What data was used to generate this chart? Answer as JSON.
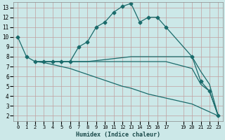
{
  "xlabel": "Humidex (Indice chaleur)",
  "bg_color": "#cce8e8",
  "grid_color": "#c0a0a0",
  "line_color": "#1a6b6b",
  "xlim": [
    -0.5,
    23.5
  ],
  "ylim": [
    1.5,
    13.5
  ],
  "xticks": [
    0,
    1,
    2,
    3,
    4,
    5,
    6,
    7,
    8,
    9,
    10,
    11,
    12,
    13,
    14,
    15,
    16,
    17,
    19,
    20,
    21,
    22,
    23
  ],
  "yticks": [
    2,
    3,
    4,
    5,
    6,
    7,
    8,
    9,
    10,
    11,
    12,
    13
  ],
  "series": [
    {
      "x": [
        0,
        1,
        2,
        3,
        4,
        5,
        6,
        7,
        8,
        9,
        10,
        11,
        12,
        13,
        14,
        15,
        16,
        17,
        20,
        21,
        22,
        23
      ],
      "y": [
        10,
        8,
        7.5,
        7.5,
        7.5,
        7.5,
        7.5,
        9,
        9.5,
        11,
        11.5,
        12.5,
        13.1,
        13.4,
        11.5,
        12,
        12,
        11,
        8,
        5.5,
        4.5,
        2
      ],
      "marker": "D",
      "markersize": 2.5,
      "lw": 0.9
    },
    {
      "x": [
        2,
        3,
        4,
        5,
        6,
        7,
        8,
        9,
        10,
        11,
        12,
        13,
        14,
        15,
        16,
        17,
        20,
        21,
        22,
        23
      ],
      "y": [
        7.5,
        7.5,
        7.5,
        7.5,
        7.5,
        7.5,
        7.5,
        7.6,
        7.7,
        7.8,
        7.9,
        8.0,
        8.0,
        8.0,
        8.0,
        8.0,
        8.0,
        6.5,
        5.2,
        2
      ],
      "marker": null,
      "markersize": 0,
      "lw": 0.9
    },
    {
      "x": [
        2,
        3,
        4,
        5,
        6,
        7,
        8,
        9,
        10,
        11,
        12,
        13,
        14,
        15,
        16,
        17,
        20,
        21,
        22,
        23
      ],
      "y": [
        7.5,
        7.5,
        7.5,
        7.5,
        7.5,
        7.5,
        7.5,
        7.5,
        7.5,
        7.5,
        7.5,
        7.5,
        7.5,
        7.5,
        7.5,
        7.5,
        6.8,
        5.2,
        4.5,
        2
      ],
      "marker": null,
      "markersize": 0,
      "lw": 0.9
    },
    {
      "x": [
        2,
        3,
        4,
        5,
        6,
        7,
        8,
        9,
        10,
        11,
        12,
        13,
        14,
        15,
        16,
        17,
        20,
        21,
        22,
        23
      ],
      "y": [
        7.5,
        7.4,
        7.2,
        7.0,
        6.8,
        6.5,
        6.2,
        5.9,
        5.6,
        5.3,
        5.0,
        4.8,
        4.5,
        4.2,
        4.0,
        3.8,
        3.2,
        2.8,
        2.4,
        2
      ],
      "marker": null,
      "markersize": 0,
      "lw": 0.9
    }
  ]
}
